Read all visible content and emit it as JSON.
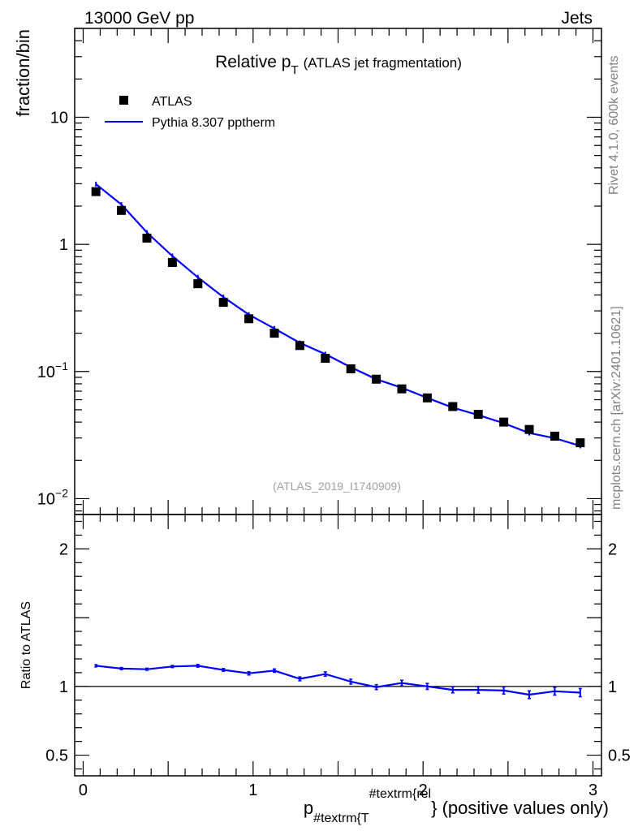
{
  "header": {
    "energy_label": "13000 GeV pp",
    "category_label": "Jets",
    "side_text_rivet": "Rivet 4.1.0,  600k events",
    "side_text_mcplots": "mcplots.cern.ch [arXiv:2401.10621]"
  },
  "chart_data": [
    {
      "type": "scatter",
      "panel": "main",
      "title_main": "Relative p",
      "title_sub": "T",
      "title_suffix": "(ATLAS jet fragmentation)",
      "ylabel": "fraction/bin",
      "analysis_id": "(ATLAS_2019_I1740909)",
      "yscale": "log",
      "xlim": [
        -0.05,
        3.05
      ],
      "ylim": [
        0.0075,
        50
      ],
      "y_ticks": [
        {
          "value": 0.01,
          "base": "10",
          "exp": "−2"
        },
        {
          "value": 0.1,
          "base": "10",
          "exp": "−1"
        },
        {
          "value": 1,
          "label": "1"
        },
        {
          "value": 10,
          "label": "10"
        }
      ],
      "legend": [
        {
          "label": "ATLAS",
          "marker": "square",
          "color": "#000000"
        },
        {
          "label": "Pythia 8.307 pptherm",
          "marker": "line",
          "color": "#0000ff"
        }
      ],
      "x": [
        0.075,
        0.225,
        0.375,
        0.525,
        0.675,
        0.825,
        0.975,
        1.125,
        1.275,
        1.425,
        1.575,
        1.725,
        1.875,
        2.025,
        2.175,
        2.325,
        2.475,
        2.625,
        2.775,
        2.925
      ],
      "series": [
        {
          "name": "ATLAS",
          "values": [
            2.6,
            1.85,
            1.12,
            0.72,
            0.49,
            0.35,
            0.26,
            0.2,
            0.16,
            0.127,
            0.105,
            0.087,
            0.073,
            0.062,
            0.053,
            0.046,
            0.04,
            0.035,
            0.031,
            0.0275
          ]
        },
        {
          "name": "Pythia 8.307 pptherm",
          "values": [
            2.98,
            2.06,
            1.24,
            0.81,
            0.55,
            0.385,
            0.28,
            0.218,
            0.168,
            0.137,
            0.108,
            0.087,
            0.0745,
            0.062,
            0.052,
            0.0455,
            0.0392,
            0.0328,
            0.0299,
            0.026
          ]
        }
      ]
    },
    {
      "type": "line",
      "panel": "ratio",
      "ylabel": "Ratio to ATLAS",
      "xlabel_base": "p",
      "xlabel_sub": "#textrm{T",
      "xlabel_sup": "#textrm{rel",
      "xlabel_suffix": "} (positive values only)",
      "xlim": [
        -0.05,
        3.05
      ],
      "ylim": [
        0.35,
        2.25
      ],
      "x_ticks": [
        {
          "value": 0,
          "label": "0"
        },
        {
          "value": 1,
          "label": "1"
        },
        {
          "value": 2,
          "label": "2"
        },
        {
          "value": 3,
          "label": "3"
        }
      ],
      "y_ticks": [
        {
          "value": 0.5,
          "label": "0.5"
        },
        {
          "value": 1,
          "label": "1"
        },
        {
          "value": 2,
          "label": "2"
        }
      ],
      "reference_line": 1,
      "x": [
        0.075,
        0.225,
        0.375,
        0.525,
        0.675,
        0.825,
        0.975,
        1.125,
        1.275,
        1.425,
        1.575,
        1.725,
        1.875,
        2.025,
        2.175,
        2.325,
        2.475,
        2.625,
        2.775,
        2.925
      ],
      "series": [
        {
          "name": "Pythia 8.307 pptherm / ATLAS",
          "color": "#0000ff",
          "values": [
            1.15,
            1.13,
            1.125,
            1.145,
            1.15,
            1.12,
            1.095,
            1.115,
            1.055,
            1.09,
            1.035,
            0.995,
            1.025,
            1.0,
            0.975,
            0.975,
            0.97,
            0.94,
            0.965,
            0.955
          ],
          "errors": [
            0.008,
            0.008,
            0.008,
            0.008,
            0.01,
            0.01,
            0.012,
            0.012,
            0.014,
            0.016,
            0.018,
            0.018,
            0.02,
            0.022,
            0.022,
            0.024,
            0.026,
            0.028,
            0.028,
            0.03
          ]
        }
      ]
    }
  ]
}
